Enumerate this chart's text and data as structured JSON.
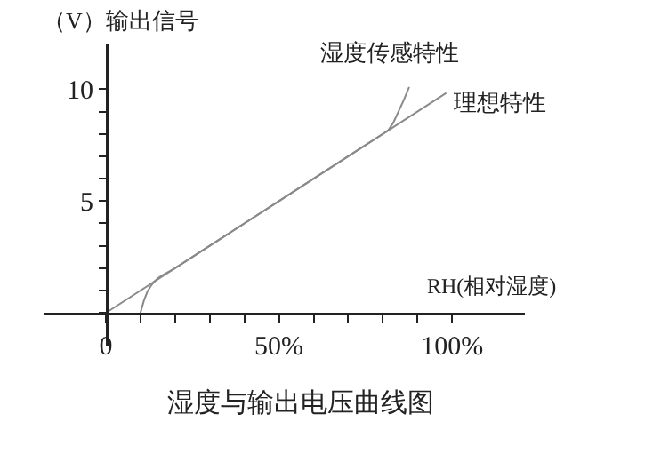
{
  "chart_data": {
    "type": "line",
    "title": "湿度与输出电压曲线图",
    "xlabel": "RH(相对湿度)",
    "ylabel": "（V）输出信号",
    "series": [
      {
        "name": "湿度传感特性",
        "color": "#8a8a8a",
        "x": [
          10,
          11,
          12,
          13,
          14,
          15,
          16,
          20,
          30,
          40,
          50,
          60,
          70,
          80,
          81.5,
          83,
          84.5,
          86,
          87.6
        ],
        "values": [
          0,
          0.55,
          0.95,
          1.2,
          1.4,
          1.55,
          1.65,
          2.0,
          3.0,
          4.0,
          5.0,
          6.0,
          7.0,
          8.0,
          8.15,
          8.5,
          9.0,
          9.5,
          10.1
        ]
      },
      {
        "name": "理想特性",
        "color": "#8a8a8a",
        "x": [
          0,
          98.3
        ],
        "values": [
          0,
          9.83
        ]
      }
    ],
    "xlim": [
      -17.7,
      121
    ],
    "ylim": [
      -1.5,
      12
    ],
    "xticks": [
      {
        "value": 0,
        "label": "0"
      },
      {
        "value": 10,
        "label": null
      },
      {
        "value": 20,
        "label": null
      },
      {
        "value": 30,
        "label": null
      },
      {
        "value": 40,
        "label": null
      },
      {
        "value": 50,
        "label": "50%"
      },
      {
        "value": 60,
        "label": null
      },
      {
        "value": 70,
        "label": null
      },
      {
        "value": 80,
        "label": null
      },
      {
        "value": 90,
        "label": null
      },
      {
        "value": 100,
        "label": "100%"
      }
    ],
    "yticks": [
      {
        "value": 0,
        "label": null
      },
      {
        "value": 1,
        "label": null
      },
      {
        "value": 2,
        "label": null
      },
      {
        "value": 3,
        "label": null
      },
      {
        "value": 4,
        "label": null
      },
      5,
      {
        "value": 6,
        "label": null
      },
      {
        "value": 7,
        "label": null
      },
      {
        "value": 8,
        "label": null
      },
      {
        "value": 9,
        "label": null
      },
      10
    ],
    "grid": false,
    "legend": false,
    "marker": "none",
    "line_style": "solid"
  }
}
